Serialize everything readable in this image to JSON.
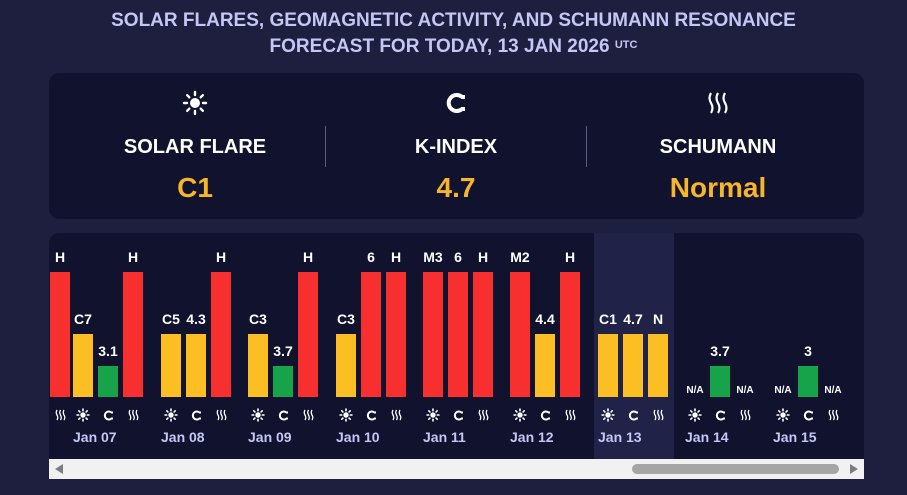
{
  "header": {
    "title_line1": "SOLAR FLARES, GEOMAGNETIC ACTIVITY, AND SCHUMANN RESONANCE",
    "title_line2": "FORECAST FOR TODAY, 13 JAN 2026",
    "title_sup": "UTC"
  },
  "summary": [
    {
      "icon": "sun-icon",
      "label": "SOLAR FLARE",
      "value": "C1"
    },
    {
      "icon": "magnet-icon",
      "label": "K-INDEX",
      "value": "4.7"
    },
    {
      "icon": "wave-icon",
      "label": "SCHUMANN",
      "value": "Normal"
    }
  ],
  "colors": {
    "yellow": "#fbbf24",
    "green": "#16a34a",
    "red": "#f72f2f",
    "value": "#f7b52b"
  },
  "chart_data": {
    "type": "bar",
    "today": "Jan 13",
    "days": [
      {
        "date": "",
        "flare": {
          "label": "",
          "level": 0
        },
        "k": {
          "label": "",
          "level": 0
        },
        "schumann": {
          "label": "H",
          "level": 1.0
        }
      },
      {
        "date": "Jan 07",
        "flare": {
          "label": "C7",
          "level": 0.5
        },
        "k": {
          "label": "3.1",
          "level": 0.25
        },
        "schumann": {
          "label": "H",
          "level": 1.0
        }
      },
      {
        "date": "Jan 08",
        "flare": {
          "label": "C5",
          "level": 0.5
        },
        "k": {
          "label": "4.3",
          "level": 0.5
        },
        "schumann": {
          "label": "H",
          "level": 1.0
        }
      },
      {
        "date": "Jan 09",
        "flare": {
          "label": "C3",
          "level": 0.5
        },
        "k": {
          "label": "3.7",
          "level": 0.25
        },
        "schumann": {
          "label": "H",
          "level": 1.0
        }
      },
      {
        "date": "Jan 10",
        "flare": {
          "label": "C3",
          "level": 0.5
        },
        "k": {
          "label": "6",
          "level": 1.0
        },
        "schumann": {
          "label": "H",
          "level": 1.0
        }
      },
      {
        "date": "Jan 11",
        "flare": {
          "label": "M3",
          "level": 1.0
        },
        "k": {
          "label": "6",
          "level": 1.0
        },
        "schumann": {
          "label": "H",
          "level": 1.0
        }
      },
      {
        "date": "Jan 12",
        "flare": {
          "label": "M2",
          "level": 1.0
        },
        "k": {
          "label": "4.4",
          "level": 0.5
        },
        "schumann": {
          "label": "H",
          "level": 1.0
        }
      },
      {
        "date": "Jan 13",
        "flare": {
          "label": "C1",
          "level": 0.5
        },
        "k": {
          "label": "4.7",
          "level": 0.5
        },
        "schumann": {
          "label": "N",
          "level": 0.5
        }
      },
      {
        "date": "Jan 14",
        "flare": {
          "label": "",
          "level": 0
        },
        "k": {
          "label": "3.7",
          "level": 0.25
        },
        "schumann": {
          "label": "N/A",
          "level": 0
        },
        "flare_label_na": "N/A"
      },
      {
        "date": "Jan 15",
        "flare": {
          "label": "",
          "level": 0
        },
        "k": {
          "label": "3",
          "level": 0.25
        },
        "schumann": {
          "label": "N/A",
          "level": 0
        },
        "flare_label_na": "N/A"
      }
    ]
  }
}
